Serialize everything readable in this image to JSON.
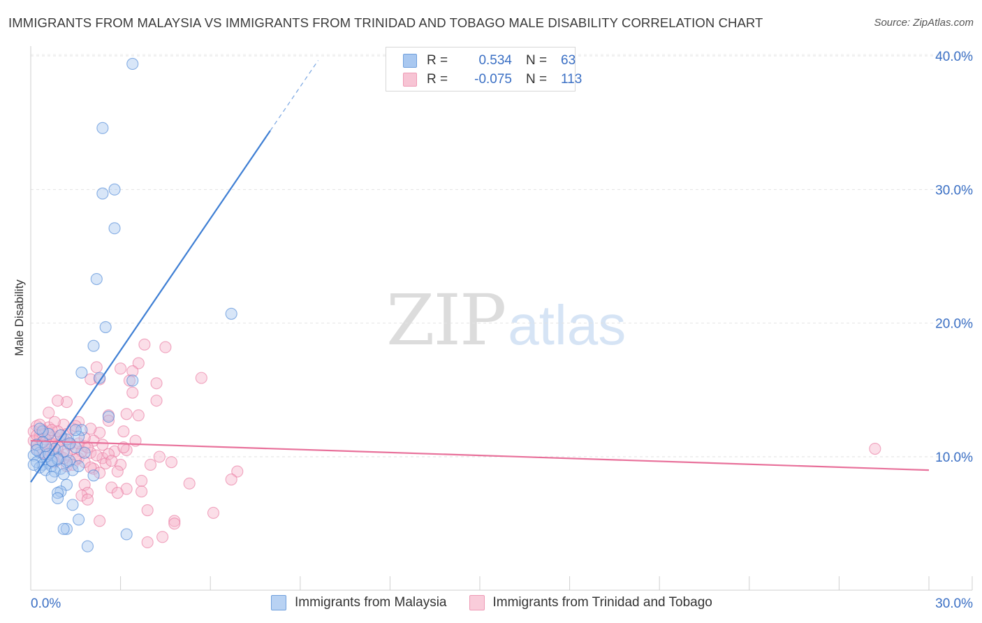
{
  "title": "IMMIGRANTS FROM MALAYSIA VS IMMIGRANTS FROM TRINIDAD AND TOBAGO MALE DISABILITY CORRELATION CHART",
  "source": "Source: ZipAtlas.com",
  "watermark": {
    "zip": "ZIP",
    "atlas": "atlas"
  },
  "legend": {
    "rows": [
      {
        "r_label": "R =",
        "r_value": "0.534",
        "n_label": "N =",
        "n_value": "63",
        "color": "#a9c8f0"
      },
      {
        "r_label": "R =",
        "r_value": "-0.075",
        "n_label": "N =",
        "n_value": "113",
        "color": "#f7b6cb"
      }
    ]
  },
  "chart_data": {
    "type": "scatter",
    "title": "IMMIGRANTS FROM MALAYSIA VS IMMIGRANTS FROM TRINIDAD AND TOBAGO MALE DISABILITY CORRELATION CHART",
    "xlabel": "",
    "ylabel": "Male Disability",
    "xlim": [
      0,
      30
    ],
    "ylim": [
      0,
      43
    ],
    "x_tick_labels": [
      "0.0%",
      "30.0%"
    ],
    "y_tick_labels": [
      "10.0%",
      "20.0%",
      "30.0%",
      "40.0%"
    ],
    "y_ticks": [
      10,
      20,
      30,
      40
    ],
    "grid": "horizontal dashed",
    "legend_position": "bottom",
    "series": [
      {
        "name": "Immigrants from Malaysia",
        "color": "#3f7fd4",
        "fill": "#a9c8f0",
        "trend": {
          "x0": 0.0,
          "y0": 8.1,
          "x1": 8.0,
          "y1": 34.4,
          "dashed_to_x": 9.6
        },
        "points": [
          [
            3.4,
            39.4
          ],
          [
            2.4,
            34.6
          ],
          [
            2.8,
            30.0
          ],
          [
            2.4,
            29.7
          ],
          [
            2.8,
            27.1
          ],
          [
            2.2,
            23.3
          ],
          [
            2.5,
            19.7
          ],
          [
            2.1,
            18.3
          ],
          [
            1.7,
            16.3
          ],
          [
            2.3,
            15.9
          ],
          [
            3.4,
            15.7
          ],
          [
            6.7,
            20.7
          ],
          [
            2.6,
            13.0
          ],
          [
            1.7,
            12.0
          ],
          [
            1.6,
            11.5
          ],
          [
            1.2,
            11.3
          ],
          [
            1.0,
            11.6
          ],
          [
            0.6,
            11.7
          ],
          [
            0.4,
            11.1
          ],
          [
            0.2,
            10.9
          ],
          [
            0.8,
            10.6
          ],
          [
            1.5,
            10.7
          ],
          [
            1.1,
            10.4
          ],
          [
            0.3,
            10.3
          ],
          [
            0.1,
            10.1
          ],
          [
            0.5,
            10.0
          ],
          [
            0.9,
            9.9
          ],
          [
            1.3,
            9.7
          ],
          [
            0.2,
            9.6
          ],
          [
            0.6,
            9.5
          ],
          [
            0.4,
            9.4
          ],
          [
            0.3,
            9.2
          ],
          [
            0.7,
            9.3
          ],
          [
            1.2,
            9.6
          ],
          [
            1.0,
            9.1
          ],
          [
            0.5,
            9.0
          ],
          [
            0.8,
            8.9
          ],
          [
            0.1,
            9.4
          ],
          [
            1.4,
            9.0
          ],
          [
            1.1,
            8.7
          ],
          [
            0.7,
            8.5
          ],
          [
            0.9,
            9.8
          ],
          [
            1.6,
            9.3
          ],
          [
            0.6,
            10.2
          ],
          [
            2.1,
            8.6
          ],
          [
            1.2,
            7.9
          ],
          [
            1.0,
            7.4
          ],
          [
            0.9,
            7.3
          ],
          [
            0.9,
            6.9
          ],
          [
            1.4,
            6.4
          ],
          [
            1.6,
            5.3
          ],
          [
            1.2,
            4.6
          ],
          [
            1.1,
            4.6
          ],
          [
            3.2,
            4.2
          ],
          [
            1.9,
            3.3
          ],
          [
            0.4,
            11.9
          ],
          [
            1.3,
            11.0
          ],
          [
            0.2,
            10.5
          ],
          [
            1.8,
            10.3
          ],
          [
            0.5,
            10.8
          ],
          [
            1.5,
            12.0
          ],
          [
            0.3,
            12.1
          ],
          [
            0.7,
            9.7
          ]
        ]
      },
      {
        "name": "Immigrants from Trinidad and Tobago",
        "color": "#e8709a",
        "fill": "#f7b6cb",
        "trend": {
          "x0": 0.0,
          "y0": 11.2,
          "x1": 30.0,
          "y1": 9.0
        },
        "points": [
          [
            3.8,
            18.4
          ],
          [
            4.5,
            18.2
          ],
          [
            3.0,
            16.6
          ],
          [
            3.6,
            17.0
          ],
          [
            2.2,
            16.7
          ],
          [
            3.4,
            16.4
          ],
          [
            2.0,
            15.8
          ],
          [
            2.3,
            15.8
          ],
          [
            3.3,
            15.7
          ],
          [
            4.2,
            15.5
          ],
          [
            5.7,
            15.9
          ],
          [
            4.2,
            14.2
          ],
          [
            1.2,
            14.1
          ],
          [
            0.9,
            14.2
          ],
          [
            0.6,
            13.3
          ],
          [
            2.6,
            13.1
          ],
          [
            3.2,
            13.2
          ],
          [
            3.6,
            13.1
          ],
          [
            2.6,
            12.7
          ],
          [
            1.6,
            12.6
          ],
          [
            1.1,
            12.4
          ],
          [
            0.6,
            12.2
          ],
          [
            0.2,
            12.3
          ],
          [
            0.4,
            12.0
          ],
          [
            0.1,
            11.9
          ],
          [
            0.3,
            11.6
          ],
          [
            0.8,
            11.5
          ],
          [
            1.2,
            11.7
          ],
          [
            2.3,
            11.8
          ],
          [
            3.1,
            11.9
          ],
          [
            0.1,
            11.2
          ],
          [
            0.4,
            11.1
          ],
          [
            0.7,
            10.9
          ],
          [
            1.3,
            11.0
          ],
          [
            1.8,
            10.8
          ],
          [
            2.1,
            11.2
          ],
          [
            3.5,
            11.2
          ],
          [
            0.2,
            10.6
          ],
          [
            0.9,
            10.5
          ],
          [
            1.4,
            10.6
          ],
          [
            2.0,
            10.3
          ],
          [
            2.8,
            10.4
          ],
          [
            3.2,
            10.5
          ],
          [
            0.5,
            10.2
          ],
          [
            1.0,
            10.0
          ],
          [
            1.6,
            9.9
          ],
          [
            2.4,
            9.9
          ],
          [
            4.3,
            10.0
          ],
          [
            0.8,
            9.6
          ],
          [
            1.8,
            9.6
          ],
          [
            2.5,
            9.5
          ],
          [
            3.0,
            9.4
          ],
          [
            4.7,
            9.6
          ],
          [
            1.2,
            9.3
          ],
          [
            2.1,
            9.1
          ],
          [
            2.9,
            8.9
          ],
          [
            6.9,
            8.9
          ],
          [
            3.7,
            8.2
          ],
          [
            6.7,
            8.3
          ],
          [
            1.8,
            7.9
          ],
          [
            2.7,
            7.7
          ],
          [
            3.2,
            7.6
          ],
          [
            5.3,
            8.0
          ],
          [
            1.9,
            7.3
          ],
          [
            2.9,
            7.3
          ],
          [
            3.7,
            7.4
          ],
          [
            1.7,
            7.1
          ],
          [
            1.9,
            6.8
          ],
          [
            3.9,
            6.0
          ],
          [
            6.1,
            5.8
          ],
          [
            2.3,
            5.2
          ],
          [
            4.8,
            5.2
          ],
          [
            4.8,
            5.0
          ],
          [
            4.4,
            4.0
          ],
          [
            3.9,
            3.6
          ],
          [
            28.2,
            10.6
          ],
          [
            0.3,
            11.4
          ],
          [
            1.1,
            11.3
          ],
          [
            0.6,
            11.8
          ],
          [
            1.4,
            12.1
          ],
          [
            0.2,
            10.9
          ],
          [
            0.9,
            10.8
          ],
          [
            1.7,
            10.4
          ],
          [
            0.4,
            11.7
          ],
          [
            2.2,
            10.1
          ],
          [
            1.5,
            9.8
          ],
          [
            0.7,
            11.0
          ],
          [
            1.0,
            11.6
          ],
          [
            2.6,
            10.2
          ],
          [
            1.3,
            10.9
          ],
          [
            0.5,
            11.3
          ],
          [
            1.9,
            10.7
          ],
          [
            2.4,
            10.9
          ],
          [
            0.3,
            12.4
          ],
          [
            1.1,
            9.9
          ],
          [
            0.8,
            12.6
          ],
          [
            3.4,
            14.8
          ],
          [
            2.0,
            12.1
          ],
          [
            1.6,
            11.0
          ],
          [
            2.7,
            9.7
          ],
          [
            0.6,
            10.5
          ],
          [
            1.4,
            9.4
          ],
          [
            3.1,
            10.7
          ],
          [
            2.3,
            8.8
          ],
          [
            0.4,
            10.3
          ],
          [
            1.8,
            11.4
          ],
          [
            0.2,
            11.6
          ],
          [
            1.2,
            10.2
          ],
          [
            0.9,
            11.9
          ],
          [
            2.0,
            9.2
          ],
          [
            1.5,
            12.3
          ],
          [
            0.7,
            12.0
          ],
          [
            4.0,
            9.4
          ]
        ]
      }
    ]
  }
}
